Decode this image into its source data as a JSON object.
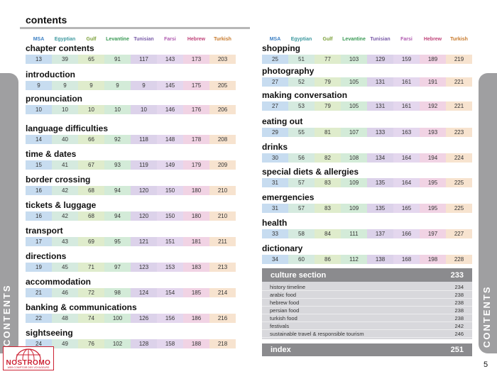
{
  "page_title": "contents",
  "side_label": "CONTENTS",
  "page_number": "5",
  "colors": {
    "msa": "#c7dcf0",
    "egyptian": "#d5eadf",
    "gulf": "#dfeccc",
    "levantine": "#d3ebd8",
    "tunisian": "#dcd2ea",
    "farsi": "#e4d7ee",
    "hebrew": "#f1d3e4",
    "turkish": "#f7e3cf",
    "hdr_msa": "#3b7fc4",
    "hdr_egyptian": "#3f9aa0",
    "hdr_gulf": "#7ca13a",
    "hdr_levantine": "#3a9a55",
    "hdr_tunisian": "#7a5ca8",
    "hdr_farsi": "#b05ab0",
    "hdr_hebrew": "#c0447a",
    "hdr_turkish": "#c87a2c",
    "side_tab": "#9f9fa1",
    "culture_bar": "#8b8b8e"
  },
  "languages": [
    "MSA",
    "Egyptian",
    "Gulf",
    "Levantine",
    "Tunisian",
    "Farsi",
    "Hebrew",
    "Turkish"
  ],
  "left_sections": [
    {
      "title": "chapter contents",
      "pages": [
        "13",
        "39",
        "65",
        "91",
        "117",
        "143",
        "173",
        "203"
      ]
    },
    {
      "title": "introduction",
      "pages": [
        "9",
        "9",
        "9",
        "9",
        "9",
        "145",
        "175",
        "205"
      ]
    },
    {
      "title": "pronunciation",
      "pages": [
        "10",
        "10",
        "10",
        "10",
        "10",
        "146",
        "176",
        "206"
      ]
    },
    {
      "title": "language difficulties",
      "pages": [
        "14",
        "40",
        "66",
        "92",
        "118",
        "148",
        "178",
        "208"
      ]
    },
    {
      "title": "time & dates",
      "pages": [
        "15",
        "41",
        "67",
        "93",
        "119",
        "149",
        "179",
        "209"
      ]
    },
    {
      "title": "border crossing",
      "pages": [
        "16",
        "42",
        "68",
        "94",
        "120",
        "150",
        "180",
        "210"
      ]
    },
    {
      "title": "tickets & luggage",
      "pages": [
        "16",
        "42",
        "68",
        "94",
        "120",
        "150",
        "180",
        "210"
      ]
    },
    {
      "title": "transport",
      "pages": [
        "17",
        "43",
        "69",
        "95",
        "121",
        "151",
        "181",
        "211"
      ]
    },
    {
      "title": "directions",
      "pages": [
        "19",
        "45",
        "71",
        "97",
        "123",
        "153",
        "183",
        "213"
      ]
    },
    {
      "title": "accommodation",
      "pages": [
        "21",
        "46",
        "72",
        "98",
        "124",
        "154",
        "185",
        "214"
      ]
    },
    {
      "title": "banking & communications",
      "pages": [
        "22",
        "48",
        "74",
        "100",
        "126",
        "156",
        "186",
        "216"
      ]
    },
    {
      "title": "sightseeing",
      "pages": [
        "24",
        "49",
        "76",
        "102",
        "128",
        "158",
        "188",
        "218"
      ]
    }
  ],
  "right_sections": [
    {
      "title": "shopping",
      "pages": [
        "25",
        "51",
        "77",
        "103",
        "129",
        "159",
        "189",
        "219"
      ]
    },
    {
      "title": "photography",
      "pages": [
        "27",
        "52",
        "79",
        "105",
        "131",
        "161",
        "191",
        "221"
      ]
    },
    {
      "title": "making conversation",
      "pages": [
        "27",
        "53",
        "79",
        "105",
        "131",
        "161",
        "192",
        "221"
      ]
    },
    {
      "title": "eating out",
      "pages": [
        "29",
        "55",
        "81",
        "107",
        "133",
        "163",
        "193",
        "223"
      ]
    },
    {
      "title": "drinks",
      "pages": [
        "30",
        "56",
        "82",
        "108",
        "134",
        "164",
        "194",
        "224"
      ]
    },
    {
      "title": "special diets & allergies",
      "pages": [
        "31",
        "57",
        "83",
        "109",
        "135",
        "164",
        "195",
        "225"
      ]
    },
    {
      "title": "emergencies",
      "pages": [
        "31",
        "57",
        "83",
        "109",
        "135",
        "165",
        "195",
        "225"
      ]
    },
    {
      "title": "health",
      "pages": [
        "33",
        "58",
        "84",
        "111",
        "137",
        "166",
        "197",
        "227"
      ]
    },
    {
      "title": "dictionary",
      "pages": [
        "34",
        "60",
        "86",
        "112",
        "138",
        "168",
        "198",
        "228"
      ]
    }
  ],
  "culture_section": {
    "title": "culture section",
    "page": "233",
    "items": [
      {
        "label": "history timeline",
        "page": "234"
      },
      {
        "label": "arabic food",
        "page": "238"
      },
      {
        "label": "hebrew food",
        "page": "238"
      },
      {
        "label": "persian food",
        "page": "238"
      },
      {
        "label": "turkish food",
        "page": "238"
      },
      {
        "label": "festivals",
        "page": "242"
      },
      {
        "label": "sustainable travel & responsible tourism",
        "page": "246"
      }
    ]
  },
  "index": {
    "title": "index",
    "page": "251"
  },
  "logo": {
    "name": "NOSTROMO",
    "tagline": "WEB COMPTOIR DES VOYAGEURS"
  }
}
